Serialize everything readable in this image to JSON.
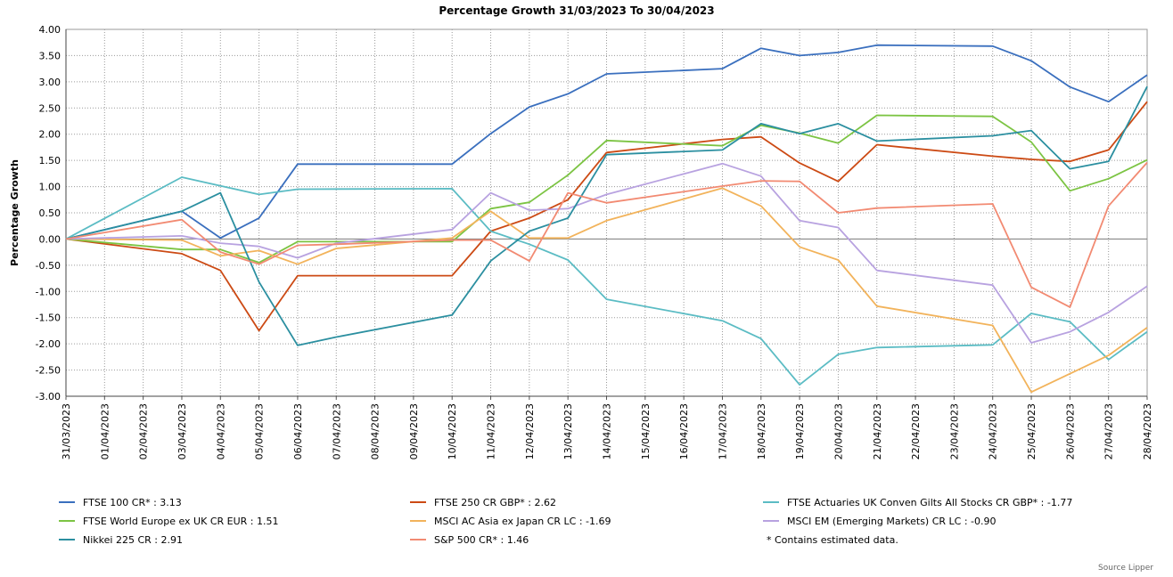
{
  "chart_data": {
    "type": "line",
    "title": "Percentage Growth 31/03/2023 To 30/04/2023",
    "ylabel": "Percentage Growth",
    "xlabel": "",
    "ylim": [
      -3.0,
      4.0
    ],
    "yticks": [
      "4.00",
      "3.50",
      "3.00",
      "2.50",
      "2.00",
      "1.50",
      "1.00",
      "0.50",
      "0.00",
      "-0.50",
      "-1.00",
      "-1.50",
      "-2.00",
      "-2.50",
      "-3.00"
    ],
    "grid": true,
    "legend_position": "bottom",
    "x": [
      "31/03/2023",
      "01/04/2023",
      "02/04/2023",
      "03/04/2023",
      "04/04/2023",
      "05/04/2023",
      "06/04/2023",
      "07/04/2023",
      "08/04/2023",
      "09/04/2023",
      "10/04/2023",
      "11/04/2023",
      "12/04/2023",
      "13/04/2023",
      "14/04/2023",
      "15/04/2023",
      "16/04/2023",
      "17/04/2023",
      "18/04/2023",
      "19/04/2023",
      "20/04/2023",
      "21/04/2023",
      "22/04/2023",
      "23/04/2023",
      "24/04/2023",
      "25/04/2023",
      "26/04/2023",
      "27/04/2023",
      "28/04/2023"
    ],
    "series": [
      {
        "name": "FTSE 100 CR* : 3.13",
        "color": "#3a6fbe",
        "points": [
          [
            0,
            0
          ],
          [
            3,
            0.53
          ],
          [
            4,
            0.02
          ],
          [
            5,
            0.4
          ],
          [
            6,
            1.43
          ],
          [
            10,
            1.43
          ],
          [
            11,
            2.01
          ],
          [
            12,
            2.52
          ],
          [
            13,
            2.77
          ],
          [
            14,
            3.15
          ],
          [
            17,
            3.25
          ],
          [
            18,
            3.64
          ],
          [
            19,
            3.5
          ],
          [
            20,
            3.56
          ],
          [
            21,
            3.7
          ],
          [
            24,
            3.68
          ],
          [
            25,
            3.4
          ],
          [
            26,
            2.9
          ],
          [
            27,
            2.62
          ],
          [
            28,
            3.13
          ]
        ]
      },
      {
        "name": "FTSE 250 CR GBP* : 2.62",
        "color": "#cc4a14",
        "points": [
          [
            0,
            0
          ],
          [
            3,
            -0.28
          ],
          [
            4,
            -0.6
          ],
          [
            5,
            -1.75
          ],
          [
            6,
            -0.7
          ],
          [
            10,
            -0.7
          ],
          [
            11,
            0.15
          ],
          [
            12,
            0.4
          ],
          [
            13,
            0.75
          ],
          [
            14,
            1.65
          ],
          [
            17,
            1.9
          ],
          [
            18,
            1.95
          ],
          [
            19,
            1.45
          ],
          [
            20,
            1.1
          ],
          [
            21,
            1.8
          ],
          [
            24,
            1.58
          ],
          [
            25,
            1.52
          ],
          [
            26,
            1.48
          ],
          [
            27,
            1.7
          ],
          [
            28,
            2.62
          ]
        ]
      },
      {
        "name": "FTSE Actuaries UK Conven Gilts All Stocks CR GBP* : -1.77",
        "color": "#5bbcc4",
        "points": [
          [
            0,
            0
          ],
          [
            3,
            1.18
          ],
          [
            5,
            0.85
          ],
          [
            6,
            0.95
          ],
          [
            10,
            0.96
          ],
          [
            11,
            0.15
          ],
          [
            12,
            -0.1
          ],
          [
            13,
            -0.4
          ],
          [
            14,
            -1.15
          ],
          [
            17,
            -1.56
          ],
          [
            18,
            -1.9
          ],
          [
            19,
            -2.78
          ],
          [
            20,
            -2.2
          ],
          [
            21,
            -2.07
          ],
          [
            24,
            -2.02
          ],
          [
            25,
            -1.42
          ],
          [
            26,
            -1.58
          ],
          [
            27,
            -2.3
          ],
          [
            28,
            -1.77
          ]
        ]
      },
      {
        "name": "FTSE World Europe ex UK CR EUR : 1.51",
        "color": "#7cc443",
        "points": [
          [
            0,
            0
          ],
          [
            3,
            -0.2
          ],
          [
            4,
            -0.2
          ],
          [
            5,
            -0.45
          ],
          [
            6,
            -0.05
          ],
          [
            10,
            -0.05
          ],
          [
            11,
            0.58
          ],
          [
            12,
            0.7
          ],
          [
            13,
            1.22
          ],
          [
            14,
            1.88
          ],
          [
            17,
            1.78
          ],
          [
            18,
            2.17
          ],
          [
            19,
            2.02
          ],
          [
            20,
            1.83
          ],
          [
            21,
            2.36
          ],
          [
            24,
            2.34
          ],
          [
            25,
            1.85
          ],
          [
            26,
            0.92
          ],
          [
            27,
            1.15
          ],
          [
            28,
            1.51
          ]
        ]
      },
      {
        "name": "MSCI AC Asia ex Japan CR LC : -1.69",
        "color": "#f2b35b",
        "points": [
          [
            0,
            0
          ],
          [
            3,
            -0.02
          ],
          [
            4,
            -0.32
          ],
          [
            5,
            -0.22
          ],
          [
            6,
            -0.48
          ],
          [
            7,
            -0.18
          ],
          [
            10,
            0.02
          ],
          [
            11,
            0.53
          ],
          [
            12,
            0.02
          ],
          [
            13,
            0.02
          ],
          [
            14,
            0.35
          ],
          [
            17,
            0.97
          ],
          [
            18,
            0.63
          ],
          [
            19,
            -0.15
          ],
          [
            20,
            -0.4
          ],
          [
            21,
            -1.28
          ],
          [
            24,
            -1.65
          ],
          [
            25,
            -2.92
          ],
          [
            27,
            -2.22
          ],
          [
            28,
            -1.69
          ]
        ]
      },
      {
        "name": "MSCI EM (Emerging Markets) CR LC : -0.90",
        "color": "#b8a2e0",
        "points": [
          [
            0,
            0
          ],
          [
            3,
            0.06
          ],
          [
            4,
            -0.08
          ],
          [
            5,
            -0.14
          ],
          [
            6,
            -0.36
          ],
          [
            7,
            -0.08
          ],
          [
            10,
            0.18
          ],
          [
            11,
            0.88
          ],
          [
            12,
            0.55
          ],
          [
            13,
            0.58
          ],
          [
            14,
            0.85
          ],
          [
            17,
            1.44
          ],
          [
            18,
            1.2
          ],
          [
            19,
            0.35
          ],
          [
            20,
            0.22
          ],
          [
            21,
            -0.6
          ],
          [
            24,
            -0.88
          ],
          [
            25,
            -1.98
          ],
          [
            26,
            -1.77
          ],
          [
            27,
            -1.4
          ],
          [
            28,
            -0.9
          ]
        ]
      },
      {
        "name": "Nikkei 225 CR : 2.91",
        "color": "#2b8fa0",
        "points": [
          [
            0,
            0
          ],
          [
            3,
            0.53
          ],
          [
            4,
            0.88
          ],
          [
            5,
            -0.82
          ],
          [
            6,
            -2.03
          ],
          [
            7,
            -1.87
          ],
          [
            10,
            -1.45
          ],
          [
            11,
            -0.42
          ],
          [
            12,
            0.15
          ],
          [
            13,
            0.4
          ],
          [
            14,
            1.61
          ],
          [
            17,
            1.7
          ],
          [
            18,
            2.2
          ],
          [
            19,
            2.01
          ],
          [
            20,
            2.2
          ],
          [
            21,
            1.87
          ],
          [
            24,
            1.97
          ],
          [
            25,
            2.07
          ],
          [
            26,
            1.34
          ],
          [
            27,
            1.48
          ],
          [
            28,
            2.91
          ]
        ]
      },
      {
        "name": "S&P 500 CR* : 1.46",
        "color": "#f28a72",
        "points": [
          [
            0,
            0
          ],
          [
            3,
            0.37
          ],
          [
            4,
            -0.25
          ],
          [
            5,
            -0.48
          ],
          [
            6,
            -0.12
          ],
          [
            7,
            -0.1
          ],
          [
            10,
            -0.02
          ],
          [
            11,
            -0.02
          ],
          [
            12,
            -0.42
          ],
          [
            13,
            0.88
          ],
          [
            14,
            0.69
          ],
          [
            17,
            1.01
          ],
          [
            18,
            1.11
          ],
          [
            19,
            1.1
          ],
          [
            20,
            0.5
          ],
          [
            21,
            0.59
          ],
          [
            24,
            0.67
          ],
          [
            25,
            -0.92
          ],
          [
            26,
            -1.3
          ],
          [
            27,
            0.63
          ],
          [
            28,
            1.46
          ]
        ]
      }
    ],
    "footnote": "*  Contains estimated data.",
    "source": "Source Lipper"
  }
}
